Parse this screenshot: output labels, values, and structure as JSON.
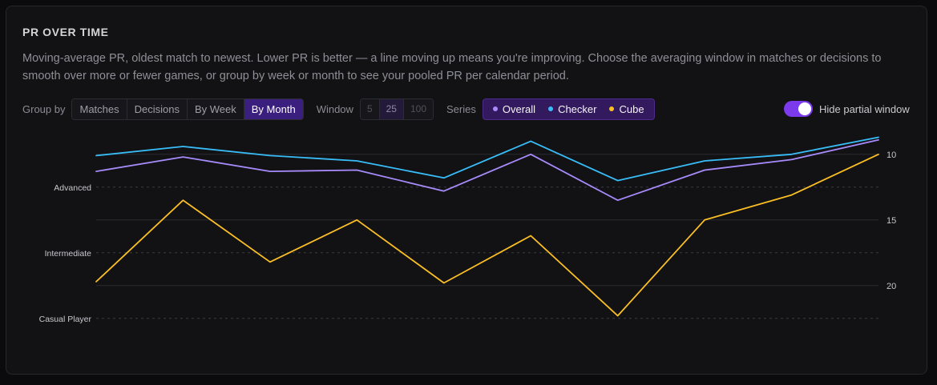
{
  "header": {
    "title": "PR OVER TIME",
    "description": "Moving-average PR, oldest match to newest. Lower PR is better — a line moving up means you're improving. Choose the averaging window in matches or decisions to smooth over more or fewer games, or group by week or month to see your pooled PR per calendar period."
  },
  "controls": {
    "group_by_label": "Group by",
    "group_by_options": [
      "Matches",
      "Decisions",
      "By Week",
      "By Month"
    ],
    "window_label": "Window",
    "window_options": [
      "5",
      "25",
      "100"
    ],
    "series_label": "Series",
    "series_options": [
      "Overall",
      "Checker",
      "Cube"
    ],
    "toggle_label": "Hide partial window"
  },
  "colors": {
    "overall": "#a78bfa",
    "checker": "#38bdf8",
    "cube": "#fbbf24",
    "accent": "#7c3aed"
  },
  "chart_data": {
    "type": "line",
    "x": [
      1,
      2,
      3,
      4,
      5,
      6,
      7,
      8,
      9,
      10
    ],
    "series": [
      {
        "name": "Overall",
        "values": [
          11.3,
          10.2,
          11.3,
          11.2,
          12.8,
          10.0,
          13.5,
          11.2,
          10.4,
          8.9
        ]
      },
      {
        "name": "Checker",
        "values": [
          10.1,
          9.4,
          10.1,
          10.5,
          11.8,
          9.0,
          12.0,
          10.5,
          10.0,
          8.7
        ]
      },
      {
        "name": "Cube",
        "values": [
          19.7,
          13.5,
          18.2,
          15.0,
          19.8,
          16.2,
          22.3,
          15.0,
          13.1,
          10.0
        ]
      }
    ],
    "y_ticks": [
      "10",
      "15",
      "20"
    ],
    "y_tick_values": [
      10,
      15,
      20
    ],
    "ylim": [
      8.0,
      23.0
    ],
    "y_inverted": true,
    "bands": [
      {
        "label": "Advanced",
        "value": 12.5
      },
      {
        "label": "Intermediate",
        "value": 17.5
      },
      {
        "label": "Casual Player",
        "value": 22.5
      }
    ]
  }
}
